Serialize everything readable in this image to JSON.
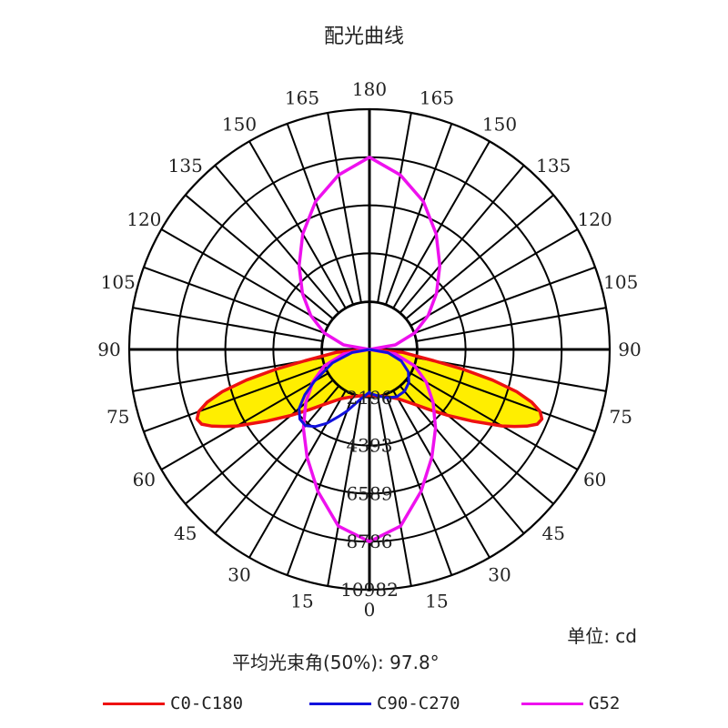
{
  "title": "配光曲线",
  "unit_label": "单位: cd",
  "beam_angle_label": "平均光束角(50%): 97.8°",
  "chart_data": {
    "type": "polar",
    "unit": "cd",
    "r_max": 10982,
    "radial_ticks": [
      2196,
      4393,
      6589,
      8786,
      10982
    ],
    "angle_labels_left": [
      "0",
      "15",
      "30",
      "45",
      "60",
      "75",
      "90",
      "105",
      "120",
      "135",
      "150",
      "165",
      "180"
    ],
    "angle_labels_right": [
      "15",
      "30",
      "45",
      "60",
      "75",
      "90",
      "105",
      "120",
      "135",
      "150",
      "165"
    ],
    "angular_grid_step": 10,
    "grid": true,
    "series": [
      {
        "name": "C0-C180",
        "color": "#ee1111",
        "fill": "#ffee00",
        "angles": [
          0,
          10,
          20,
          30,
          40,
          45,
          50,
          55,
          60,
          62,
          64,
          66,
          68,
          70,
          72,
          74,
          76,
          78,
          80,
          85,
          90
        ],
        "values": [
          2100,
          2150,
          2300,
          2600,
          3300,
          3900,
          4700,
          5700,
          7000,
          7500,
          8000,
          8400,
          8500,
          8300,
          7800,
          7000,
          5800,
          4400,
          3000,
          1500,
          0
        ]
      },
      {
        "name": "C90-C270",
        "color": "#1111dd",
        "angles": [
          0,
          10,
          20,
          25,
          30,
          35,
          40,
          45,
          50,
          55,
          60,
          70,
          80,
          90
        ],
        "values": [
          1950,
          2300,
          3000,
          3400,
          3900,
          4300,
          4550,
          4500,
          4200,
          3600,
          2900,
          1800,
          800,
          0
        ],
        "right_angles": [
          0,
          10,
          20,
          30,
          40,
          50,
          60,
          70,
          80,
          90
        ],
        "right_values": [
          2000,
          2150,
          2350,
          2500,
          2500,
          2350,
          2050,
          1550,
          850,
          0
        ]
      },
      {
        "name": "G52",
        "color": "#ee11ee",
        "angles": [
          0,
          10,
          20,
          30,
          40,
          50,
          60,
          70,
          80,
          90,
          100,
          110,
          120,
          130,
          140,
          150,
          160,
          170,
          180
        ],
        "values": [
          8786,
          8200,
          6900,
          5700,
          4700,
          3800,
          3000,
          2200,
          1200,
          0,
          1200,
          2200,
          3100,
          4000,
          5000,
          6100,
          7200,
          8100,
          8786
        ]
      }
    ]
  }
}
